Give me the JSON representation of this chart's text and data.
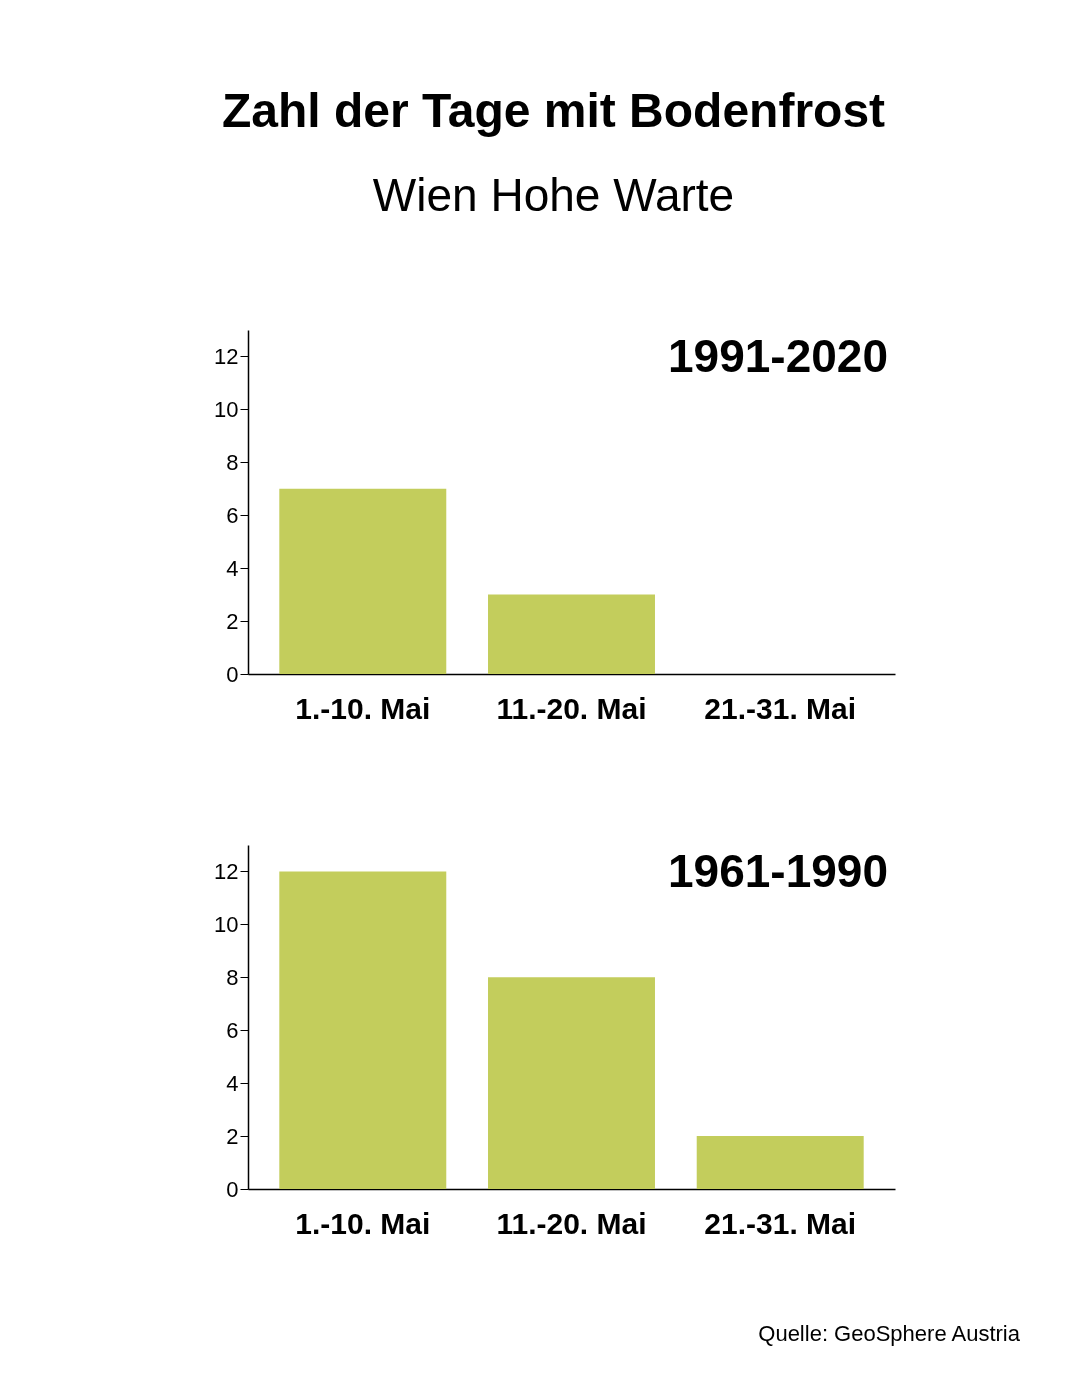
{
  "chart_data": [
    {
      "type": "bar",
      "title": "Zahl der Tage mit Bodenfrost",
      "subtitle": "Wien Hohe Warte",
      "categories": [
        "1.-10. Mai",
        "11.-20. Mai",
        "21.-31. Mai"
      ],
      "values": [
        7,
        3,
        0
      ],
      "color": "#c3cd5c",
      "ylim": [
        0,
        13
      ],
      "yticks": [
        0,
        2,
        4,
        6,
        8,
        10,
        12
      ],
      "annotations": [
        "1991-2020"
      ]
    },
    {
      "type": "bar",
      "categories": [
        "1.-10. Mai",
        "11.-20. Mai",
        "21.-31. Mai"
      ],
      "values": [
        12,
        8,
        2
      ],
      "color": "#c3cd5c",
      "ylim": [
        0,
        13
      ],
      "yticks": [
        0,
        2,
        4,
        6,
        8,
        10,
        12
      ],
      "annotations": [
        "1961-1990",
        "Quelle: GeoSphere Austria"
      ]
    }
  ]
}
